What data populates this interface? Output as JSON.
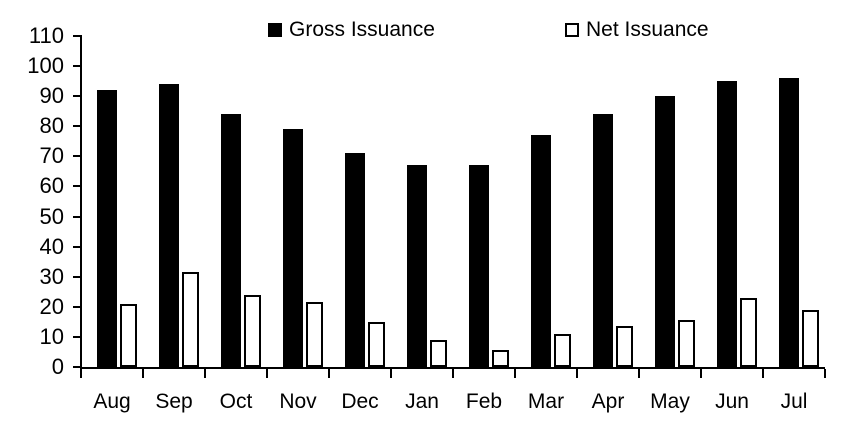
{
  "chart_data": {
    "type": "bar",
    "title": "",
    "xlabel": "",
    "ylabel": "",
    "categories": [
      "Aug",
      "Sep",
      "Oct",
      "Nov",
      "Dec",
      "Jan",
      "Feb",
      "Mar",
      "Apr",
      "May",
      "Jun",
      "Jul"
    ],
    "series": [
      {
        "name": "Gross Issuance",
        "values": [
          92,
          94,
          84,
          79,
          71,
          67,
          67,
          77,
          84,
          90,
          95,
          96
        ],
        "fill": "#000000"
      },
      {
        "name": "Net Issuance",
        "values": [
          21,
          31.5,
          24,
          21.5,
          15,
          9,
          5.5,
          11,
          13.5,
          15.5,
          23,
          19
        ],
        "fill": "#ffffff",
        "stroke": "#000000"
      }
    ],
    "ylim": [
      0,
      110
    ],
    "yticks": [
      0,
      10,
      20,
      30,
      40,
      50,
      60,
      70,
      80,
      90,
      100,
      110
    ],
    "grid": false,
    "legend_position": "top"
  },
  "colors": {
    "axis": "#000000",
    "background": "#ffffff",
    "gross_bar": "#000000",
    "net_bar_fill": "#ffffff",
    "net_bar_border": "#000000"
  }
}
